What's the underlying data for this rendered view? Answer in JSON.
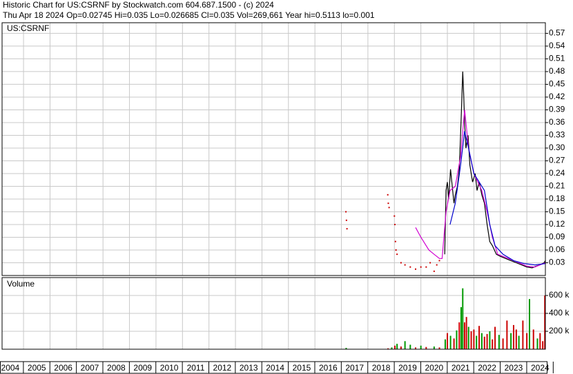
{
  "header": {
    "title": "Historic Chart for US:CSRNF by Stockwatch.com 604.687.1500 - (c) 2024",
    "info": "Thu Apr 18 2024   Op=0.02745  Hi=0.035  Lo=0.026685  Cl=0.035  Vol=269,661  Year hi=0.5113  lo=0.001"
  },
  "chart_data": [
    {
      "type": "line",
      "title": "US:CSRNF",
      "grid": true,
      "xlim": [
        2003.69,
        2024.2
      ],
      "ylim": [
        0,
        0.595
      ],
      "yticks": [
        0.03,
        0.06,
        0.09,
        0.12,
        0.15,
        0.18,
        0.21,
        0.24,
        0.27,
        {
          "value": 0.3,
          "label": "0.30"
        },
        0.33,
        0.36,
        0.39,
        0.42,
        0.45,
        0.48,
        0.51,
        0.54,
        0.57
      ],
      "series": [
        {
          "style": "dots",
          "color": "#cc0000",
          "x": [
            2016.67,
            2016.69,
            2016.71,
            2018.25,
            2018.27,
            2018.3,
            2018.5,
            2018.52,
            2018.54,
            2018.56,
            2018.6,
            2018.75,
            2018.9,
            2019.1,
            2019.3,
            2019.5,
            2019.7,
            2019.85,
            2020.0,
            2020.1,
            2020.2
          ],
          "values": [
            0.15,
            0.13,
            0.11,
            0.19,
            0.17,
            0.16,
            0.14,
            0.12,
            0.08,
            0.06,
            0.05,
            0.03,
            0.025,
            0.02,
            0.015,
            0.02,
            0.02,
            0.03,
            0.01,
            0.025,
            0.035
          ]
        },
        {
          "style": "line",
          "color": "#000000",
          "x": [
            2020.4,
            2020.45,
            2020.5,
            2020.55,
            2020.62,
            2020.7,
            2020.75,
            2020.8,
            2020.88,
            2020.95,
            2021.02,
            2021.08,
            2021.12,
            2021.15,
            2021.2,
            2021.28,
            2021.35,
            2021.45,
            2021.55,
            2021.62,
            2021.7,
            2021.8,
            2021.9,
            2022.0,
            2022.1,
            2022.2,
            2022.35,
            2022.5,
            2022.7,
            2022.9,
            2023.1,
            2023.3,
            2023.5,
            2023.7,
            2023.85,
            2024.0,
            2024.15,
            2024.2
          ],
          "values": [
            0.05,
            0.2,
            0.22,
            0.18,
            0.25,
            0.2,
            0.17,
            0.19,
            0.21,
            0.25,
            0.37,
            0.48,
            0.42,
            0.36,
            0.3,
            0.33,
            0.26,
            0.22,
            0.24,
            0.2,
            0.22,
            0.19,
            0.17,
            0.12,
            0.08,
            0.07,
            0.05,
            0.045,
            0.04,
            0.035,
            0.03,
            0.025,
            0.02,
            0.018,
            0.022,
            0.025,
            0.03,
            0.035
          ]
        },
        {
          "style": "line",
          "color": "#d000d0",
          "x": [
            2019.3,
            2019.5,
            2019.8,
            2020.0,
            2020.2,
            2020.3,
            2020.45,
            2020.6,
            2020.8,
            2021.0,
            2021.15,
            2021.3,
            2021.5,
            2021.8,
            2022.0,
            2022.2,
            2022.4,
            2022.8,
            2023.2,
            2023.5,
            2023.8,
            2024.0,
            2024.2
          ],
          "values": [
            0.113,
            0.09,
            0.06,
            0.05,
            0.04,
            0.04,
            0.15,
            0.2,
            0.21,
            0.28,
            0.39,
            0.3,
            0.24,
            0.2,
            0.15,
            0.09,
            0.05,
            0.04,
            0.03,
            0.022,
            0.02,
            0.025,
            0.03
          ]
        },
        {
          "style": "line",
          "color": "#0000cc",
          "x": [
            2020.6,
            2020.8,
            2021.0,
            2021.15,
            2021.3,
            2021.5,
            2021.7,
            2021.9,
            2022.1,
            2022.3,
            2022.6,
            2023.0,
            2023.4,
            2023.8,
            2024.2
          ],
          "values": [
            0.12,
            0.17,
            0.26,
            0.34,
            0.3,
            0.24,
            0.22,
            0.2,
            0.12,
            0.07,
            0.05,
            0.035,
            0.028,
            0.025,
            0.028
          ]
        }
      ]
    },
    {
      "type": "bar",
      "title": "Volume",
      "grid": true,
      "xlim": [
        2003.69,
        2024.2
      ],
      "ylim": [
        0,
        800000
      ],
      "yticks": [
        {
          "value": 200000,
          "label": "200 k"
        },
        {
          "value": 400000,
          "label": "400 k"
        },
        {
          "value": 600000,
          "label": "600 k"
        }
      ],
      "xticks": [
        2004,
        2005,
        2006,
        2007,
        2008,
        2009,
        2010,
        2011,
        2012,
        2013,
        2014,
        2015,
        2016,
        2017,
        2018,
        2019,
        2020,
        2021,
        2022,
        2023,
        2024
      ],
      "x": [
        2016.68,
        2018.26,
        2018.4,
        2018.52,
        2018.6,
        2018.75,
        2018.9,
        2019.1,
        2019.3,
        2019.5,
        2019.7,
        2020.0,
        2020.2,
        2020.42,
        2020.5,
        2020.62,
        2020.75,
        2020.85,
        2020.95,
        2021.02,
        2021.08,
        2021.15,
        2021.22,
        2021.3,
        2021.4,
        2021.5,
        2021.6,
        2021.7,
        2021.8,
        2021.9,
        2022.0,
        2022.1,
        2022.2,
        2022.3,
        2022.45,
        2022.6,
        2022.75,
        2022.9,
        2023.0,
        2023.1,
        2023.2,
        2023.35,
        2023.5,
        2023.6,
        2023.75,
        2023.9,
        2024.0,
        2024.1,
        2024.18
      ],
      "values": [
        15000,
        10000,
        20000,
        40000,
        60000,
        30000,
        90000,
        50000,
        20000,
        40000,
        25000,
        30000,
        20000,
        110000,
        180000,
        150000,
        120000,
        210000,
        300000,
        470000,
        680000,
        300000,
        360000,
        250000,
        200000,
        220000,
        150000,
        260000,
        180000,
        140000,
        170000,
        200000,
        110000,
        250000,
        160000,
        120000,
        320000,
        180000,
        270000,
        220000,
        150000,
        320000,
        180000,
        560000,
        220000,
        120000,
        180000,
        90000,
        600000
      ],
      "colors": [
        "#009900",
        "#cc0000",
        "#009900",
        "#cc0000",
        "#009900",
        "#cc0000",
        "#009900",
        "#009900",
        "#cc0000",
        "#009900",
        "#cc0000",
        "#009900",
        "#cc0000",
        "#009900",
        "#cc0000",
        "#009900",
        "#cc0000",
        "#009900",
        "#cc0000",
        "#009900",
        "#009900",
        "#cc0000",
        "#cc0000",
        "#009900",
        "#cc0000",
        "#cc0000",
        "#009900",
        "#cc0000",
        "#009900",
        "#cc0000",
        "#cc0000",
        "#009900",
        "#cc0000",
        "#cc0000",
        "#009900",
        "#cc0000",
        "#cc0000",
        "#009900",
        "#cc0000",
        "#cc0000",
        "#009900",
        "#cc0000",
        "#cc0000",
        "#009900",
        "#cc0000",
        "#009900",
        "#cc0000",
        "#cc0000",
        "#cc0000"
      ]
    }
  ]
}
